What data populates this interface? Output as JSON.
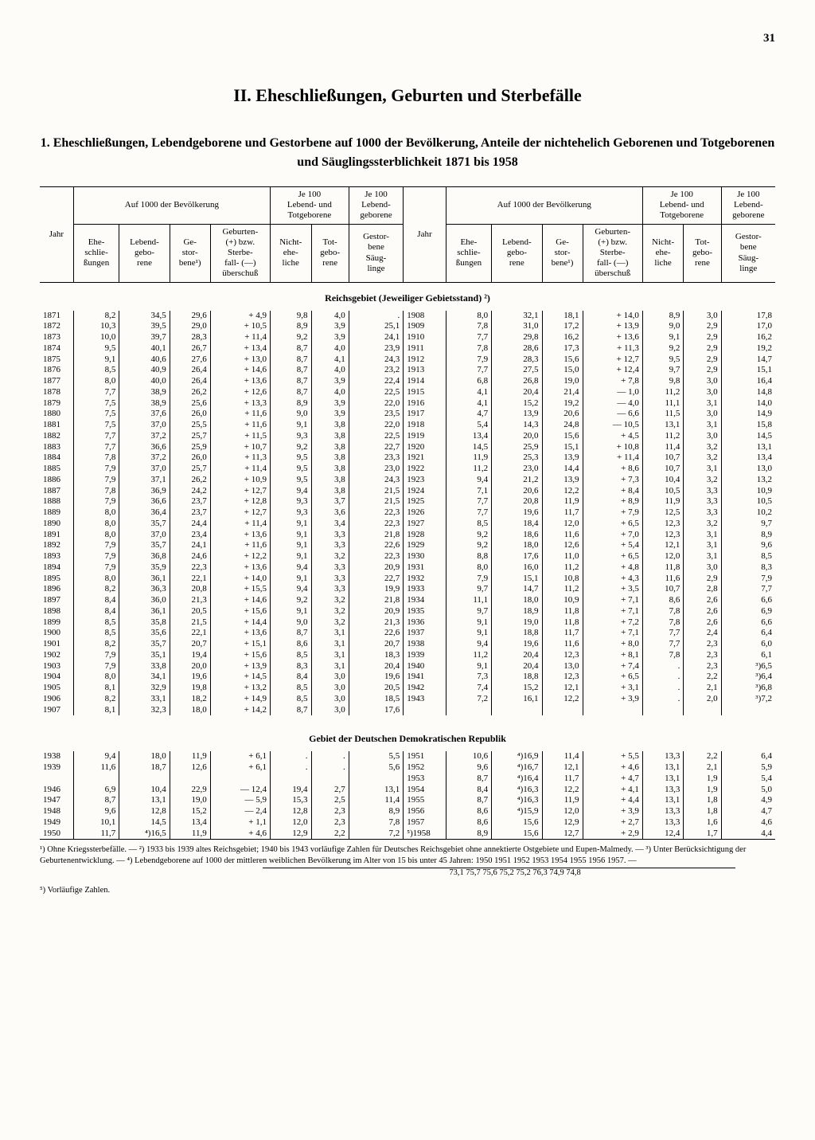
{
  "page_number": "31",
  "chapter_title": "II. Eheschließungen, Geburten und Sterbefälle",
  "table_title": "1. Eheschließungen, Lebendgeborene und Gestorbene auf 1000 der Bevölkerung, Anteile der nichtehelich Geborenen und Totgeborenen und Säuglingssterblichkeit 1871 bis 1958",
  "headers": {
    "jahr": "Jahr",
    "group_per1000": "Auf 1000 der Bevölkerung",
    "group_per100_lt": "Je 100\nLebend- und\nTotgeborene",
    "group_per100_l": "Je 100\nLebend-\ngeborene",
    "ehe": "Ehe-\nschlie-\nßungen",
    "lebend": "Lebend-\ngebo-\nrene",
    "gestorb": "Ge-\nstor-\nbene¹)",
    "ueber": "Geburten-\n(+) bzw.\nSterbe-\nfall- (—)\nüberschuß",
    "nichtehe": "Nicht-\nehe-\nliche",
    "totgeb": "Tot-\ngebo-\nrene",
    "saug": "Gestor-\nbene\nSäug-\nlinge"
  },
  "section1_title": "Reichsgebiet (Jeweiliger Gebietsstand) ²)",
  "section2_title": "Gebiet der Deutschen Demokratischen Republik",
  "left_rows": [
    [
      "1871",
      "8,2",
      "34,5",
      "29,6",
      "+  4,9",
      "9,8",
      "4,0",
      "."
    ],
    [
      "1872",
      "10,3",
      "39,5",
      "29,0",
      "+ 10,5",
      "8,9",
      "3,9",
      "25,1"
    ],
    [
      "1873",
      "10,0",
      "39,7",
      "28,3",
      "+ 11,4",
      "9,2",
      "3,9",
      "24,1"
    ],
    [
      "1874",
      "9,5",
      "40,1",
      "26,7",
      "+ 13,4",
      "8,7",
      "4,0",
      "23,9"
    ],
    [
      "1875",
      "9,1",
      "40,6",
      "27,6",
      "+ 13,0",
      "8,7",
      "4,1",
      "24,3"
    ],
    [
      "1876",
      "8,5",
      "40,9",
      "26,4",
      "+ 14,6",
      "8,7",
      "4,0",
      "23,2"
    ],
    [
      "1877",
      "8,0",
      "40,0",
      "26,4",
      "+ 13,6",
      "8,7",
      "3,9",
      "22,4"
    ],
    [
      "1878",
      "7,7",
      "38,9",
      "26,2",
      "+ 12,6",
      "8,7",
      "4,0",
      "22,5"
    ],
    [
      "1879",
      "7,5",
      "38,9",
      "25,6",
      "+ 13,3",
      "8,9",
      "3,9",
      "22,0"
    ],
    [
      "1880",
      "7,5",
      "37,6",
      "26,0",
      "+ 11,6",
      "9,0",
      "3,9",
      "23,5"
    ],
    [
      "1881",
      "7,5",
      "37,0",
      "25,5",
      "+ 11,6",
      "9,1",
      "3,8",
      "22,0"
    ],
    [
      "1882",
      "7,7",
      "37,2",
      "25,7",
      "+ 11,5",
      "9,3",
      "3,8",
      "22,5"
    ],
    [
      "1883",
      "7,7",
      "36,6",
      "25,9",
      "+ 10,7",
      "9,2",
      "3,8",
      "22,7"
    ],
    [
      "1884",
      "7,8",
      "37,2",
      "26,0",
      "+ 11,3",
      "9,5",
      "3,8",
      "23,3"
    ],
    [
      "1885",
      "7,9",
      "37,0",
      "25,7",
      "+ 11,4",
      "9,5",
      "3,8",
      "23,0"
    ],
    [
      "1886",
      "7,9",
      "37,1",
      "26,2",
      "+ 10,9",
      "9,5",
      "3,8",
      "24,3"
    ],
    [
      "1887",
      "7,8",
      "36,9",
      "24,2",
      "+ 12,7",
      "9,4",
      "3,8",
      "21,5"
    ],
    [
      "1888",
      "7,9",
      "36,6",
      "23,7",
      "+ 12,8",
      "9,3",
      "3,7",
      "21,5"
    ],
    [
      "1889",
      "8,0",
      "36,4",
      "23,7",
      "+ 12,7",
      "9,3",
      "3,6",
      "22,3"
    ],
    [
      "1890",
      "8,0",
      "35,7",
      "24,4",
      "+ 11,4",
      "9,1",
      "3,4",
      "22,3"
    ],
    [
      "1891",
      "8,0",
      "37,0",
      "23,4",
      "+ 13,6",
      "9,1",
      "3,3",
      "21,8"
    ],
    [
      "1892",
      "7,9",
      "35,7",
      "24,1",
      "+ 11,6",
      "9,1",
      "3,3",
      "22,6"
    ],
    [
      "1893",
      "7,9",
      "36,8",
      "24,6",
      "+ 12,2",
      "9,1",
      "3,2",
      "22,3"
    ],
    [
      "1894",
      "7,9",
      "35,9",
      "22,3",
      "+ 13,6",
      "9,4",
      "3,3",
      "20,9"
    ],
    [
      "1895",
      "8,0",
      "36,1",
      "22,1",
      "+ 14,0",
      "9,1",
      "3,3",
      "22,7"
    ],
    [
      "1896",
      "8,2",
      "36,3",
      "20,8",
      "+ 15,5",
      "9,4",
      "3,3",
      "19,9"
    ],
    [
      "1897",
      "8,4",
      "36,0",
      "21,3",
      "+ 14,6",
      "9,2",
      "3,2",
      "21,8"
    ],
    [
      "1898",
      "8,4",
      "36,1",
      "20,5",
      "+ 15,6",
      "9,1",
      "3,2",
      "20,9"
    ],
    [
      "1899",
      "8,5",
      "35,8",
      "21,5",
      "+ 14,4",
      "9,0",
      "3,2",
      "21,3"
    ],
    [
      "1900",
      "8,5",
      "35,6",
      "22,1",
      "+ 13,6",
      "8,7",
      "3,1",
      "22,6"
    ],
    [
      "1901",
      "8,2",
      "35,7",
      "20,7",
      "+ 15,1",
      "8,6",
      "3,1",
      "20,7"
    ],
    [
      "1902",
      "7,9",
      "35,1",
      "19,4",
      "+ 15,6",
      "8,5",
      "3,1",
      "18,3"
    ],
    [
      "1903",
      "7,9",
      "33,8",
      "20,0",
      "+ 13,9",
      "8,3",
      "3,1",
      "20,4"
    ],
    [
      "1904",
      "8,0",
      "34,1",
      "19,6",
      "+ 14,5",
      "8,4",
      "3,0",
      "19,6"
    ],
    [
      "1905",
      "8,1",
      "32,9",
      "19,8",
      "+ 13,2",
      "8,5",
      "3,0",
      "20,5"
    ],
    [
      "1906",
      "8,2",
      "33,1",
      "18,2",
      "+ 14,9",
      "8,5",
      "3,0",
      "18,5"
    ],
    [
      "1907",
      "8,1",
      "32,3",
      "18,0",
      "+ 14,2",
      "8,7",
      "3,0",
      "17,6"
    ]
  ],
  "right_rows": [
    [
      "1908",
      "8,0",
      "32,1",
      "18,1",
      "+ 14,0",
      "8,9",
      "3,0",
      "17,8"
    ],
    [
      "1909",
      "7,8",
      "31,0",
      "17,2",
      "+ 13,9",
      "9,0",
      "2,9",
      "17,0"
    ],
    [
      "1910",
      "7,7",
      "29,8",
      "16,2",
      "+ 13,6",
      "9,1",
      "2,9",
      "16,2"
    ],
    [
      "1911",
      "7,8",
      "28,6",
      "17,3",
      "+ 11,3",
      "9,2",
      "2,9",
      "19,2"
    ],
    [
      "1912",
      "7,9",
      "28,3",
      "15,6",
      "+ 12,7",
      "9,5",
      "2,9",
      "14,7"
    ],
    [
      "1913",
      "7,7",
      "27,5",
      "15,0",
      "+ 12,4",
      "9,7",
      "2,9",
      "15,1"
    ],
    [
      "1914",
      "6,8",
      "26,8",
      "19,0",
      "+  7,8",
      "9,8",
      "3,0",
      "16,4"
    ],
    [
      "1915",
      "4,1",
      "20,4",
      "21,4",
      "—  1,0",
      "11,2",
      "3,0",
      "14,8"
    ],
    [
      "1916",
      "4,1",
      "15,2",
      "19,2",
      "—  4,0",
      "11,1",
      "3,1",
      "14,0"
    ],
    [
      "1917",
      "4,7",
      "13,9",
      "20,6",
      "—  6,6",
      "11,5",
      "3,0",
      "14,9"
    ],
    [
      "1918",
      "5,4",
      "14,3",
      "24,8",
      "— 10,5",
      "13,1",
      "3,1",
      "15,8"
    ],
    [
      "1919",
      "13,4",
      "20,0",
      "15,6",
      "+  4,5",
      "11,2",
      "3,0",
      "14,5"
    ],
    [
      "1920",
      "14,5",
      "25,9",
      "15,1",
      "+ 10,8",
      "11,4",
      "3,2",
      "13,1"
    ],
    [
      "1921",
      "11,9",
      "25,3",
      "13,9",
      "+ 11,4",
      "10,7",
      "3,2",
      "13,4"
    ],
    [
      "1922",
      "11,2",
      "23,0",
      "14,4",
      "+  8,6",
      "10,7",
      "3,1",
      "13,0"
    ],
    [
      "1923",
      "9,4",
      "21,2",
      "13,9",
      "+  7,3",
      "10,4",
      "3,2",
      "13,2"
    ],
    [
      "1924",
      "7,1",
      "20,6",
      "12,2",
      "+  8,4",
      "10,5",
      "3,3",
      "10,9"
    ],
    [
      "1925",
      "7,7",
      "20,8",
      "11,9",
      "+  8,9",
      "11,9",
      "3,3",
      "10,5"
    ],
    [
      "1926",
      "7,7",
      "19,6",
      "11,7",
      "+  7,9",
      "12,5",
      "3,3",
      "10,2"
    ],
    [
      "1927",
      "8,5",
      "18,4",
      "12,0",
      "+  6,5",
      "12,3",
      "3,2",
      "9,7"
    ],
    [
      "1928",
      "9,2",
      "18,6",
      "11,6",
      "+  7,0",
      "12,3",
      "3,1",
      "8,9"
    ],
    [
      "1929",
      "9,2",
      "18,0",
      "12,6",
      "+  5,4",
      "12,1",
      "3,1",
      "9,6"
    ],
    [
      "1930",
      "8,8",
      "17,6",
      "11,0",
      "+  6,5",
      "12,0",
      "3,1",
      "8,5"
    ],
    [
      "1931",
      "8,0",
      "16,0",
      "11,2",
      "+  4,8",
      "11,8",
      "3,0",
      "8,3"
    ],
    [
      "1932",
      "7,9",
      "15,1",
      "10,8",
      "+  4,3",
      "11,6",
      "2,9",
      "7,9"
    ],
    [
      "1933",
      "9,7",
      "14,7",
      "11,2",
      "+  3,5",
      "10,7",
      "2,8",
      "7,7"
    ],
    [
      "1934",
      "11,1",
      "18,0",
      "10,9",
      "+  7,1",
      "8,6",
      "2,6",
      "6,6"
    ],
    [
      "1935",
      "9,7",
      "18,9",
      "11,8",
      "+  7,1",
      "7,8",
      "2,6",
      "6,9"
    ],
    [
      "1936",
      "9,1",
      "19,0",
      "11,8",
      "+  7,2",
      "7,8",
      "2,6",
      "6,6"
    ],
    [
      "1937",
      "9,1",
      "18,8",
      "11,7",
      "+  7,1",
      "7,7",
      "2,4",
      "6,4"
    ],
    [
      "1938",
      "9,4",
      "19,6",
      "11,6",
      "+  8,0",
      "7,7",
      "2,3",
      "6,0"
    ],
    [
      "1939",
      "11,2",
      "20,4",
      "12,3",
      "+  8,1",
      "7,8",
      "2,3",
      "6,1"
    ],
    [
      "1940",
      "9,1",
      "20,4",
      "13,0",
      "+  7,4",
      ".",
      "2,3",
      "³)6,5"
    ],
    [
      "1941",
      "7,3",
      "18,8",
      "12,3",
      "+  6,5",
      ".",
      "2,2",
      "³)6,4"
    ],
    [
      "1942",
      "7,4",
      "15,2",
      "12,1",
      "+  3,1",
      ".",
      "2,1",
      "³)6,8"
    ],
    [
      "1943",
      "7,2",
      "16,1",
      "12,2",
      "+  3,9",
      ".",
      "2,0",
      "³)7,2"
    ],
    [
      "",
      "",
      "",
      "",
      "",
      "",
      "",
      ""
    ]
  ],
  "ddr_left": [
    [
      "1938",
      "9,4",
      "18,0",
      "11,9",
      "+  6,1",
      ".",
      ".",
      "5,5"
    ],
    [
      "1939",
      "11,6",
      "18,7",
      "12,6",
      "+  6,1",
      ".",
      ".",
      "5,6"
    ],
    [
      "",
      "",
      "",
      "",
      "",
      "",
      "",
      ""
    ],
    [
      "1946",
      "6,9",
      "10,4",
      "22,9",
      "— 12,4",
      "19,4",
      "2,7",
      "13,1"
    ],
    [
      "1947",
      "8,7",
      "13,1",
      "19,0",
      "—  5,9",
      "15,3",
      "2,5",
      "11,4"
    ],
    [
      "1948",
      "9,6",
      "12,8",
      "15,2",
      "—  2,4",
      "12,8",
      "2,3",
      "8,9"
    ],
    [
      "1949",
      "10,1",
      "14,5",
      "13,4",
      "+  1,1",
      "12,0",
      "2,3",
      "7,8"
    ],
    [
      "1950",
      "11,7",
      "⁴)16,5",
      "11,9",
      "+  4,6",
      "12,9",
      "2,2",
      "7,2"
    ]
  ],
  "ddr_right": [
    [
      "1951",
      "10,6",
      "⁴)16,9",
      "11,4",
      "+  5,5",
      "13,3",
      "2,2",
      "6,4"
    ],
    [
      "1952",
      "9,6",
      "⁴)16,7",
      "12,1",
      "+  4,6",
      "13,1",
      "2,1",
      "5,9"
    ],
    [
      "1953",
      "8,7",
      "⁴)16,4",
      "11,7",
      "+  4,7",
      "13,1",
      "1,9",
      "5,4"
    ],
    [
      "1954",
      "8,4",
      "⁴)16,3",
      "12,2",
      "+  4,1",
      "13,3",
      "1,9",
      "5,0"
    ],
    [
      "1955",
      "8,7",
      "⁴)16,3",
      "11,9",
      "+  4,4",
      "13,1",
      "1,8",
      "4,9"
    ],
    [
      "1956",
      "8,6",
      "⁴)15,9",
      "12,0",
      "+  3,9",
      "13,3",
      "1,8",
      "4,7"
    ],
    [
      "1957",
      "8,6",
      "15,6",
      "12,9",
      "+  2,7",
      "13,3",
      "1,6",
      "4,6"
    ],
    [
      "⁵)1958",
      "8,9",
      "15,6",
      "12,7",
      "+  2,9",
      "12,4",
      "1,7",
      "4,4"
    ]
  ],
  "footnote_main": "¹) Ohne Kriegssterbefälle. — ²) 1933 bis 1939 altes Reichsgebiet; 1940 bis 1943 vorläufige Zahlen für Deutsches Reichsgebiet ohne annektierte Ostgebiete und Eupen-Malmedy. — ³) Unter Berücksichtigung der Geburtenentwicklung. — ⁴) Lebendgeborene auf 1000 der mittleren weiblichen Bevölkerung im Alter von 15 bis unter 45 Jahren:",
  "footnote_years": "1950   1951   1952   1953   1954   1955   1956   1957.  —",
  "footnote_values": "73,1     75,7     75,6     75,2     75,2     76,3     74,9     74,8",
  "footnote5": "⁵) Vorläufige Zahlen."
}
